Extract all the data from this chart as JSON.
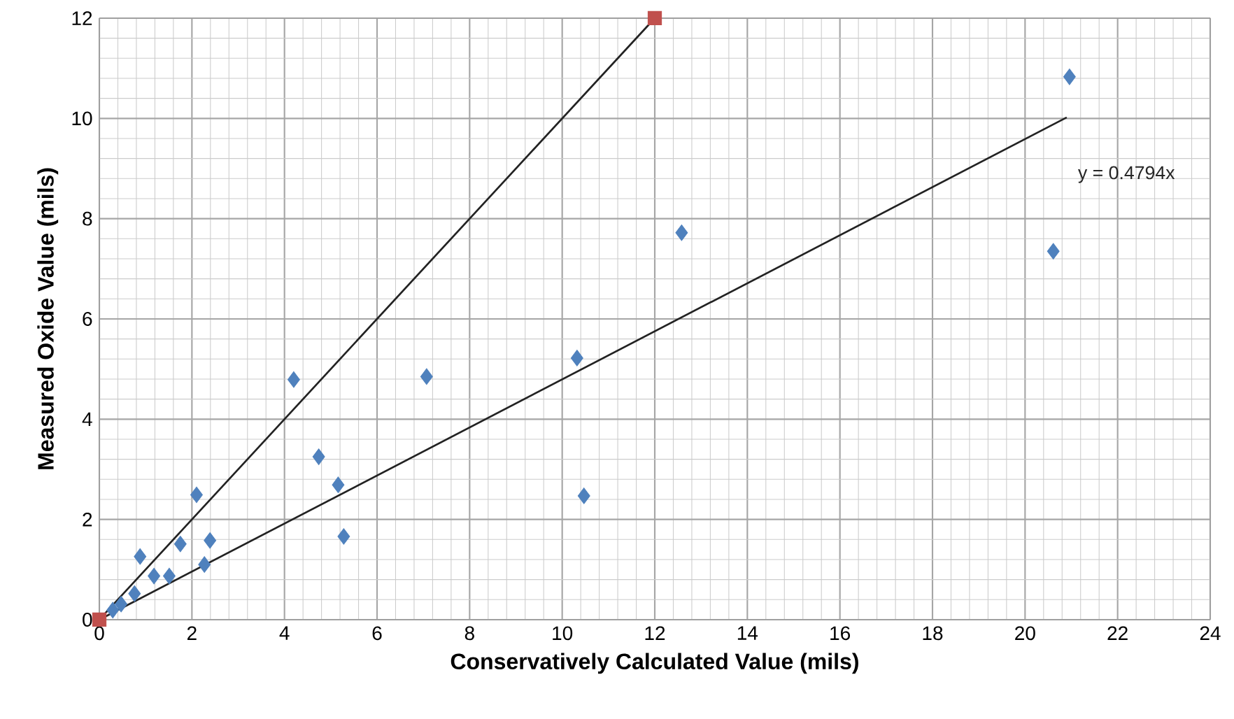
{
  "chart_data": {
    "type": "scatter",
    "xlabel": "Conservatively Calculated Value (mils)",
    "ylabel": "Measured Oxide Value (mils)",
    "xlim": [
      0,
      24
    ],
    "ylim": [
      0,
      12
    ],
    "xticks": [
      0,
      2,
      4,
      6,
      8,
      10,
      12,
      14,
      16,
      18,
      20,
      22,
      24
    ],
    "yticks": [
      0,
      2,
      4,
      6,
      8,
      10,
      12
    ],
    "grid": true,
    "series": [
      {
        "marker": "diamond",
        "color": "#4f81bd",
        "x": [
          4.2,
          7.07,
          4.74,
          5.16,
          5.28,
          2.1,
          2.39,
          2.27,
          1.75,
          0.88,
          1.18,
          1.51,
          0.76,
          0.47,
          0.29,
          10.32,
          10.47,
          12.58,
          20.96,
          20.61
        ],
        "values": [
          4.79,
          4.85,
          3.25,
          2.69,
          1.66,
          2.49,
          1.58,
          1.1,
          1.51,
          1.26,
          0.87,
          0.87,
          0.52,
          0.31,
          0.19,
          5.22,
          2.47,
          7.72,
          10.83,
          7.35
        ]
      },
      {
        "type": "line",
        "marker": "none",
        "line_style": "solid",
        "color": "#222222",
        "x": [
          0,
          12
        ],
        "values": [
          0,
          12
        ]
      },
      {
        "type": "line",
        "marker": "none",
        "line_style": "solid",
        "color": "#222222",
        "x": [
          0,
          20.9
        ],
        "values": [
          0,
          10.02
        ]
      },
      {
        "marker": "square",
        "color": "#c0504d",
        "x": [
          0,
          12
        ],
        "values": [
          0,
          12
        ]
      }
    ],
    "annotations": [
      "y = 0.4794x"
    ]
  }
}
